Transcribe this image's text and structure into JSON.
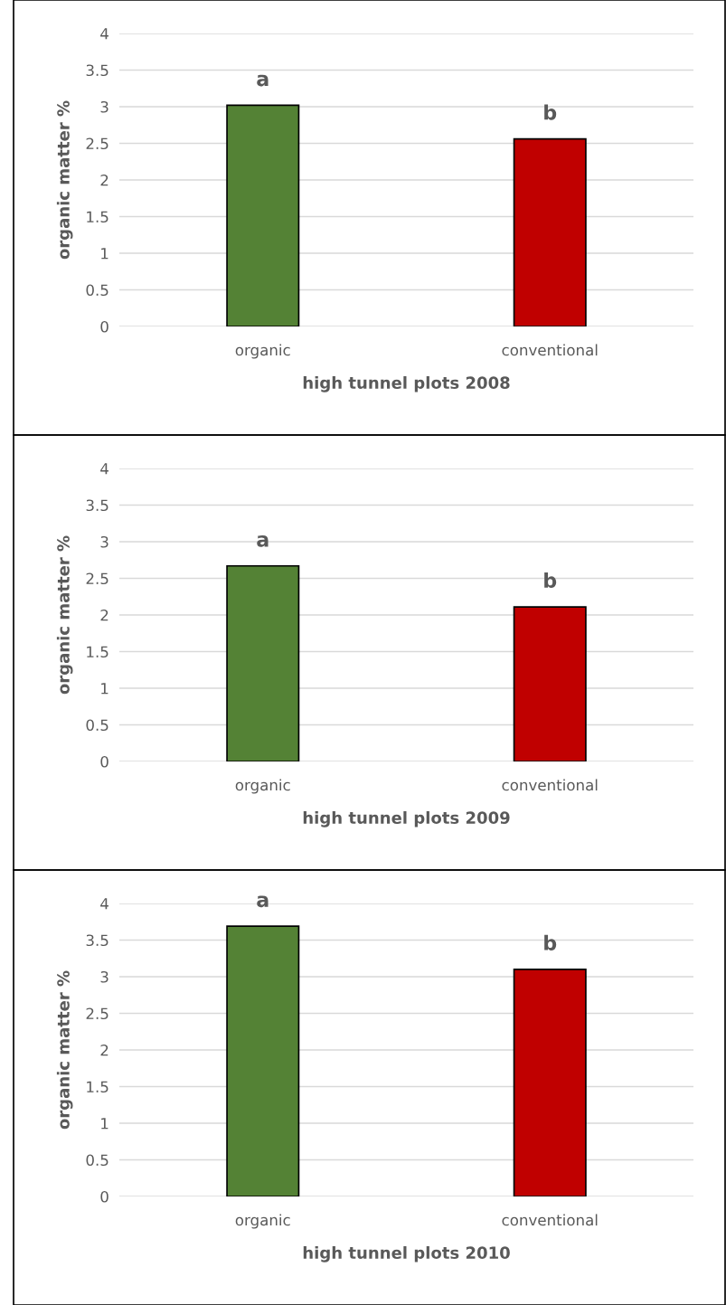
{
  "chart_data": [
    {
      "type": "bar",
      "xlabel": "high tunnel plots 2008",
      "ylabel": "organic matter %",
      "categories": [
        "organic",
        "conventional"
      ],
      "values": [
        3.02,
        2.56
      ],
      "colors": [
        "#548235",
        "#c00000"
      ],
      "ylim": [
        0,
        4
      ],
      "yticks": [
        0,
        0.5,
        1,
        1.5,
        2,
        2.5,
        3,
        3.5,
        4
      ],
      "grid": "y",
      "annotations": [
        {
          "text": "a",
          "x": "organic",
          "y": 3.02
        },
        {
          "text": "b",
          "x": "conventional",
          "y": 2.56
        }
      ]
    },
    {
      "type": "bar",
      "xlabel": "high tunnel plots 2009",
      "ylabel": "organic matter %",
      "categories": [
        "organic",
        "conventional"
      ],
      "values": [
        2.67,
        2.11
      ],
      "colors": [
        "#548235",
        "#c00000"
      ],
      "ylim": [
        0,
        4
      ],
      "yticks": [
        0,
        0.5,
        1,
        1.5,
        2,
        2.5,
        3,
        3.5,
        4
      ],
      "grid": "y",
      "annotations": [
        {
          "text": "a",
          "x": "organic",
          "y": 2.67
        },
        {
          "text": "b",
          "x": "conventional",
          "y": 2.11
        }
      ]
    },
    {
      "type": "bar",
      "xlabel": "high tunnel plots 2010",
      "ylabel": "organic matter %",
      "categories": [
        "organic",
        "conventional"
      ],
      "values": [
        3.69,
        3.1
      ],
      "colors": [
        "#548235",
        "#c00000"
      ],
      "ylim": [
        0,
        4
      ],
      "yticks": [
        0,
        0.5,
        1,
        1.5,
        2,
        2.5,
        3,
        3.5,
        4
      ],
      "grid": "y",
      "annotations": [
        {
          "text": "a",
          "x": "organic",
          "y": 3.69
        },
        {
          "text": "b",
          "x": "conventional",
          "y": 3.1
        }
      ]
    }
  ]
}
